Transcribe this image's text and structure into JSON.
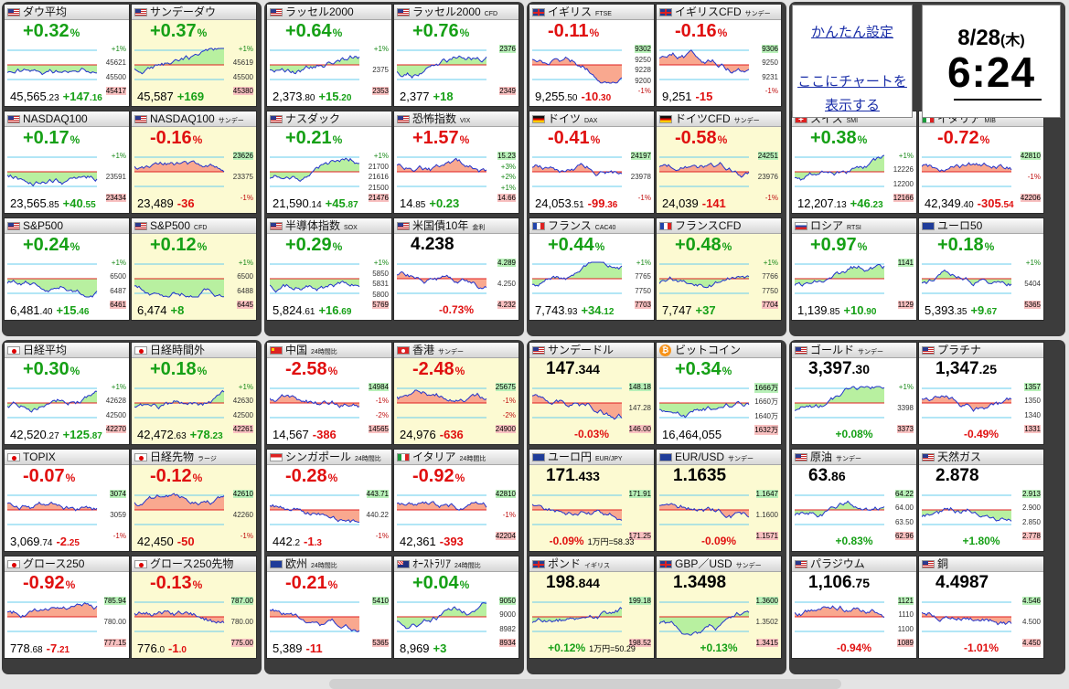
{
  "colors": {
    "up": "#16a016",
    "down": "#e01010",
    "fill_up": "#b8f0a0",
    "fill_down": "#f9a88f",
    "line": "#2233cc",
    "ref": "#e02020",
    "band": "#66ccee",
    "highlight": "#fcfad2"
  },
  "settings": {
    "link1": "かんたん設定",
    "link2a": "ここにチャートを",
    "link2b": "表示する"
  },
  "clock": {
    "date": "8/28",
    "weekday": "(木)",
    "time": "6:24"
  },
  "tiles": [
    {
      "id": "dow",
      "flag": "us",
      "name": "ダウ平均",
      "sub": "",
      "chg": "+0.32",
      "dir": "up",
      "foot_main": "45,565",
      "foot_dec": ".23",
      "foot_chg": "+147",
      "foot_chgdec": ".16",
      "labels": [
        "+1%",
        "45621",
        "45500",
        "45417"
      ]
    },
    {
      "id": "sunday-dow",
      "flag": "us",
      "name": "サンデーダウ",
      "sub": "",
      "chg": "+0.37",
      "dir": "up",
      "hl": true,
      "foot_main": "45,587",
      "foot_dec": "",
      "foot_chg": "+169",
      "foot_chgdec": "",
      "labels": [
        "+1%",
        "45619",
        "45500",
        "45380"
      ]
    },
    {
      "id": "russell",
      "flag": "us",
      "name": "ラッセル2000",
      "sub": "",
      "chg": "+0.64",
      "dir": "up",
      "foot_main": "2,373",
      "foot_dec": ".80",
      "foot_chg": "+15",
      "foot_chgdec": ".20",
      "labels": [
        "+1%",
        "2375",
        "2353"
      ]
    },
    {
      "id": "russell-cfd",
      "flag": "us",
      "name": "ラッセル2000",
      "sub": "CFD",
      "chg": "+0.76",
      "dir": "up",
      "foot_main": "2,377",
      "foot_dec": "",
      "foot_chg": "+18",
      "foot_chgdec": "",
      "labels": [
        "2376",
        "2349"
      ]
    },
    {
      "id": "ftse",
      "flag": "gb",
      "name": "イギリス",
      "sub": "FTSE",
      "chg": "-0.11",
      "dir": "dn",
      "foot_main": "9,255",
      "foot_dec": ".50",
      "foot_chg": "-10",
      "foot_chgdec": ".30",
      "labels": [
        "9302",
        "9250",
        "9228",
        "9200",
        "-1%"
      ]
    },
    {
      "id": "ftse-cfd",
      "flag": "gb",
      "name": "イギリスCFD",
      "sub": "サンデー",
      "chg": "-0.16",
      "dir": "dn",
      "foot_main": "9,251",
      "foot_dec": "",
      "foot_chg": "-15",
      "foot_chgdec": "",
      "labels": [
        "9306",
        "9250",
        "9231",
        "-1%"
      ]
    },
    {
      "id": "nasdaq",
      "flag": "us",
      "name": "NASDAQ100",
      "sub": "",
      "chg": "+0.17",
      "dir": "up",
      "foot_main": "23,565",
      "foot_dec": ".85",
      "foot_chg": "+40",
      "foot_chgdec": ".55",
      "labels": [
        "+1%",
        "23591",
        "23434"
      ]
    },
    {
      "id": "nasdaq-sun",
      "flag": "us",
      "name": "NASDAQ100",
      "sub": "サンデー",
      "chg": "-0.16",
      "dir": "dn",
      "hl": true,
      "foot_main": "23,489",
      "foot_dec": "",
      "foot_chg": "-36",
      "foot_chgdec": "",
      "labels": [
        "23626",
        "23375",
        "-1%"
      ]
    },
    {
      "id": "nasdaq-comp",
      "flag": "us",
      "name": "ナスダック",
      "sub": "",
      "chg": "+0.21",
      "dir": "up",
      "foot_main": "21,590",
      "foot_dec": ".14",
      "foot_chg": "+45",
      "foot_chgdec": ".87",
      "labels": [
        "+1%",
        "21700",
        "21616",
        "21500",
        "21476"
      ]
    },
    {
      "id": "vix",
      "flag": "us",
      "name": "恐怖指数",
      "sub": "VIX",
      "chg": "+1.57",
      "dir": "dn",
      "foot_main": "14",
      "foot_dec": ".85",
      "foot_chg": "+0.23",
      "foot_chgdec": "",
      "labels": [
        "15.23",
        "+3%",
        "+2%",
        "+1%",
        "14.66"
      ]
    },
    {
      "id": "dax",
      "flag": "de",
      "name": "ドイツ",
      "sub": "DAX",
      "chg": "-0.41",
      "dir": "dn",
      "foot_main": "24,053",
      "foot_dec": ".51",
      "foot_chg": "-99",
      "foot_chgdec": ".36",
      "labels": [
        "24197",
        "23978",
        "-1%"
      ]
    },
    {
      "id": "dax-cfd",
      "flag": "de",
      "name": "ドイツCFD",
      "sub": "サンデー",
      "chg": "-0.58",
      "dir": "dn",
      "hl": true,
      "foot_main": "24,039",
      "foot_dec": "",
      "foot_chg": "-141",
      "foot_chgdec": "",
      "labels": [
        "24251",
        "23976",
        "-1%"
      ]
    },
    {
      "id": "smi",
      "flag": "ch",
      "name": "スイス",
      "sub": "SMI",
      "chg": "+0.38",
      "dir": "up",
      "foot_main": "12,207",
      "foot_dec": ".13",
      "foot_chg": "+46",
      "foot_chgdec": ".23",
      "labels": [
        "+1%",
        "12226",
        "12200",
        "12166"
      ]
    },
    {
      "id": "mib",
      "flag": "it",
      "name": "イタリア",
      "sub": "MIB",
      "chg": "-0.72",
      "dir": "dn",
      "foot_main": "42,349",
      "foot_dec": ".40",
      "foot_chg": "-305",
      "foot_chgdec": ".54",
      "labels": [
        "42810",
        "-1%",
        "42206"
      ]
    },
    {
      "id": "sp500",
      "flag": "us",
      "name": "S&P500",
      "sub": "",
      "chg": "+0.24",
      "dir": "up",
      "foot_main": "6,481",
      "foot_dec": ".40",
      "foot_chg": "+15",
      "foot_chgdec": ".46",
      "labels": [
        "+1%",
        "6500",
        "6487",
        "6461"
      ]
    },
    {
      "id": "sp500-cfd",
      "flag": "us",
      "name": "S&P500",
      "sub": "CFD",
      "chg": "+0.12",
      "dir": "up",
      "hl": true,
      "foot_main": "6,474",
      "foot_dec": "",
      "foot_chg": "+8",
      "foot_chgdec": "",
      "labels": [
        "+1%",
        "6500",
        "6488",
        "6445"
      ]
    },
    {
      "id": "sox",
      "flag": "us",
      "name": "半導体指数",
      "sub": "SOX",
      "chg": "+0.29",
      "dir": "up",
      "foot_main": "5,824",
      "foot_dec": ".61",
      "foot_chg": "+16",
      "foot_chgdec": ".69",
      "labels": [
        "+1%",
        "5850",
        "5831",
        "5800",
        "5769"
      ]
    },
    {
      "id": "us10y",
      "flag": "us",
      "name": "米国債10年",
      "sub": "金利",
      "price": "4.238",
      "dir": "dn",
      "center_foot": "-0.73%",
      "labels": [
        "4.289",
        "4.250",
        "4.232"
      ]
    },
    {
      "id": "cac",
      "flag": "fr",
      "name": "フランス",
      "sub": "CAC40",
      "chg": "+0.44",
      "dir": "up",
      "foot_main": "7,743",
      "foot_dec": ".93",
      "foot_chg": "+34",
      "foot_chgdec": ".12",
      "labels": [
        "+1%",
        "7765",
        "7750",
        "7703"
      ]
    },
    {
      "id": "cac-cfd",
      "flag": "fr",
      "name": "フランスCFD",
      "sub": "",
      "chg": "+0.48",
      "dir": "up",
      "hl": true,
      "foot_main": "7,747",
      "foot_dec": "",
      "foot_chg": "+37",
      "foot_chgdec": "",
      "labels": [
        "+1%",
        "7766",
        "7750",
        "7704"
      ]
    },
    {
      "id": "rtsi",
      "flag": "ru",
      "name": "ロシア",
      "sub": "RTSI",
      "chg": "+0.97",
      "dir": "up",
      "foot_main": "1,139",
      "foot_dec": ".85",
      "foot_chg": "+10",
      "foot_chgdec": ".90",
      "labels": [
        "1141",
        "1129"
      ]
    },
    {
      "id": "eu50",
      "flag": "eu",
      "name": "ユーロ50",
      "sub": "",
      "chg": "+0.18",
      "dir": "up",
      "foot_main": "5,393",
      "foot_dec": ".35",
      "foot_chg": "+9",
      "foot_chgdec": ".67",
      "labels": [
        "+1%",
        "5404",
        "5365"
      ]
    },
    {
      "id": "nikkei",
      "flag": "jp",
      "name": "日経平均",
      "sub": "",
      "chg": "+0.30",
      "dir": "up",
      "foot_main": "42,520",
      "foot_dec": ".27",
      "foot_chg": "+125",
      "foot_chgdec": ".87",
      "labels": [
        "+1%",
        "42628",
        "42500",
        "42270"
      ]
    },
    {
      "id": "nikkei-ah",
      "flag": "jp",
      "name": "日経時間外",
      "sub": "",
      "chg": "+0.18",
      "dir": "up",
      "hl": true,
      "foot_main": "42,472",
      "foot_dec": ".63",
      "foot_chg": "+78",
      "foot_chgdec": ".23",
      "labels": [
        "+1%",
        "42630",
        "42500",
        "42261"
      ]
    },
    {
      "id": "china",
      "flag": "cn",
      "name": "中国",
      "sub": "24時間比",
      "chg": "-2.58",
      "dir": "dn",
      "foot_main": "14,567",
      "foot_dec": "",
      "foot_chg": "-386",
      "foot_chgdec": "",
      "labels": [
        "14984",
        "-1%",
        "-2%",
        "14565"
      ]
    },
    {
      "id": "hk",
      "flag": "hk",
      "name": "香港",
      "sub": "サンデー",
      "chg": "-2.48",
      "dir": "dn",
      "hl": true,
      "foot_main": "24,976",
      "foot_dec": "",
      "foot_chg": "-636",
      "foot_chgdec": "",
      "labels": [
        "25675",
        "-1%",
        "-2%",
        "24900"
      ]
    },
    {
      "id": "usdjpy",
      "flag": "us",
      "name": "サンデードル",
      "sub": "",
      "price": "147",
      "pricedec": ".344",
      "hl": true,
      "dir": "dn",
      "center_foot": "-0.03%",
      "labels": [
        "148.18",
        "147.28",
        "146.00"
      ]
    },
    {
      "id": "btc",
      "flag": "btc",
      "name": "ビットコイン",
      "sub": "",
      "chg": "+0.34",
      "dir": "up",
      "foot_main": "16,464,055",
      "foot_dec": "",
      "foot_chg": "",
      "foot_chgdec": "",
      "labels": [
        "1666万",
        "1660万",
        "1640万",
        "1632万"
      ]
    },
    {
      "id": "gold",
      "flag": "us",
      "name": "ゴールド",
      "sub": "サンデー",
      "price": "3,397",
      "pricedec": ".30",
      "dir": "up",
      "center_foot": "+0.08%",
      "labels": [
        "+1%",
        "3398",
        "3373"
      ]
    },
    {
      "id": "platinum",
      "flag": "us",
      "name": "プラチナ",
      "sub": "",
      "price": "1,347",
      "pricedec": ".25",
      "dir": "dn",
      "center_foot": "-0.49%",
      "labels": [
        "1357",
        "1350",
        "1340",
        "1331"
      ]
    },
    {
      "id": "topix",
      "flag": "jp",
      "name": "TOPIX",
      "sub": "",
      "chg": "-0.07",
      "dir": "dn",
      "foot_main": "3,069",
      "foot_dec": ".74",
      "foot_chg": "-2",
      "foot_chgdec": ".25",
      "labels": [
        "3074",
        "3059",
        "-1%"
      ]
    },
    {
      "id": "nikkei-fut",
      "flag": "jp",
      "name": "日経先物",
      "sub": "ラージ",
      "chg": "-0.12",
      "dir": "dn",
      "hl": true,
      "foot_main": "42,450",
      "foot_dec": "",
      "foot_chg": "-50",
      "foot_chgdec": "",
      "labels": [
        "42610",
        "42260",
        "-1%"
      ]
    },
    {
      "id": "sg",
      "flag": "sg",
      "name": "シンガポール",
      "sub": "24時間比",
      "chg": "-0.28",
      "dir": "dn",
      "foot_main": "442",
      "foot_dec": ".2",
      "foot_chg": "-1",
      "foot_chgdec": ".3",
      "labels": [
        "443.71",
        "440.22",
        "-1%"
      ]
    },
    {
      "id": "italy24",
      "flag": "it",
      "name": "イタリア",
      "sub": "24時間比",
      "chg": "-0.92",
      "dir": "dn",
      "foot_main": "42,361",
      "foot_dec": "",
      "foot_chg": "-393",
      "foot_chgdec": "",
      "labels": [
        "42810",
        "-1%",
        "42204"
      ]
    },
    {
      "id": "eurjpy",
      "flag": "eu",
      "name": "ユーロ円",
      "sub": "EUR/JPY",
      "price": "171",
      "pricedec": ".433",
      "hl": true,
      "dir": "dn",
      "center_foot": "-0.09%",
      "fx": "1万円=58.33",
      "labels": [
        "171.91",
        "171.25"
      ]
    },
    {
      "id": "eurusd",
      "flag": "eu",
      "name": "EUR/USD",
      "sub": "サンデー",
      "price": "1.1635",
      "pricedec": "",
      "hl": true,
      "dir": "dn",
      "center_foot": "-0.09%",
      "labels": [
        "1.1647",
        "1.1600",
        "1.1571"
      ]
    },
    {
      "id": "oil",
      "flag": "us",
      "name": "原油",
      "sub": "サンデー",
      "price": "63",
      "pricedec": ".86",
      "dir": "up",
      "center_foot": "+0.83%",
      "labels": [
        "64.22",
        "64.00",
        "63.50",
        "62.96"
      ]
    },
    {
      "id": "natgas",
      "flag": "us",
      "name": "天然ガス",
      "sub": "",
      "price": "2.878",
      "pricedec": "",
      "dir": "up",
      "center_foot": "+1.80%",
      "labels": [
        "2.913",
        "2.900",
        "2.850",
        "2.778"
      ]
    },
    {
      "id": "growth",
      "flag": "jp",
      "name": "グロース250",
      "sub": "",
      "chg": "-0.92",
      "dir": "dn",
      "foot_main": "778",
      "foot_dec": ".68",
      "foot_chg": "-7",
      "foot_chgdec": ".21",
      "labels": [
        "785.94",
        "780.00",
        "777.15"
      ]
    },
    {
      "id": "growth-fut",
      "flag": "jp",
      "name": "グロース250先物",
      "sub": "",
      "chg": "-0.13",
      "dir": "dn",
      "hl": true,
      "foot_main": "776",
      "foot_dec": ".0",
      "foot_chg": "-1",
      "foot_chgdec": ".0",
      "labels": [
        "787.00",
        "780.00",
        "775.00"
      ]
    },
    {
      "id": "europe",
      "flag": "eu",
      "name": "欧州",
      "sub": "24時間比",
      "chg": "-0.21",
      "dir": "dn",
      "foot_main": "5,389",
      "foot_dec": "",
      "foot_chg": "-11",
      "foot_chgdec": "",
      "labels": [
        "5410",
        "5365"
      ]
    },
    {
      "id": "aus",
      "flag": "au",
      "name": "ｵｰｽﾄﾗﾘｱ",
      "sub": "24時間比",
      "chg": "+0.04",
      "dir": "up",
      "foot_main": "8,969",
      "foot_dec": "",
      "foot_chg": "+3",
      "foot_chgdec": "",
      "labels": [
        "9050",
        "9000",
        "8982",
        "8934"
      ]
    },
    {
      "id": "bond",
      "flag": "gb",
      "name": "ポンド",
      "sub": "イギリス",
      "price": "198",
      "pricedec": ".844",
      "hl": true,
      "dir": "up",
      "center_foot": "+0.12%",
      "fx": "1万円=50.29",
      "labels": [
        "199.18",
        "198.52"
      ]
    },
    {
      "id": "gbpusd",
      "flag": "gb",
      "name": "GBP／USD",
      "sub": "サンデー",
      "price": "1.3498",
      "pricedec": "",
      "hl": true,
      "dir": "up",
      "center_foot": "+0.13%",
      "labels": [
        "1.3600",
        "1.3502",
        "1.3415"
      ]
    },
    {
      "id": "palladium",
      "flag": "us",
      "name": "パラジウム",
      "sub": "",
      "price": "1,106",
      "pricedec": ".75",
      "dir": "dn",
      "center_foot": "-0.94%",
      "labels": [
        "1121",
        "1110",
        "1100",
        "1089"
      ]
    },
    {
      "id": "copper",
      "flag": "us",
      "name": "銅",
      "sub": "",
      "price": "4.4987",
      "pricedec": "",
      "dir": "dn",
      "center_foot": "-1.01%",
      "labels": [
        "4.546",
        "4.500",
        "4.450"
      ]
    }
  ]
}
